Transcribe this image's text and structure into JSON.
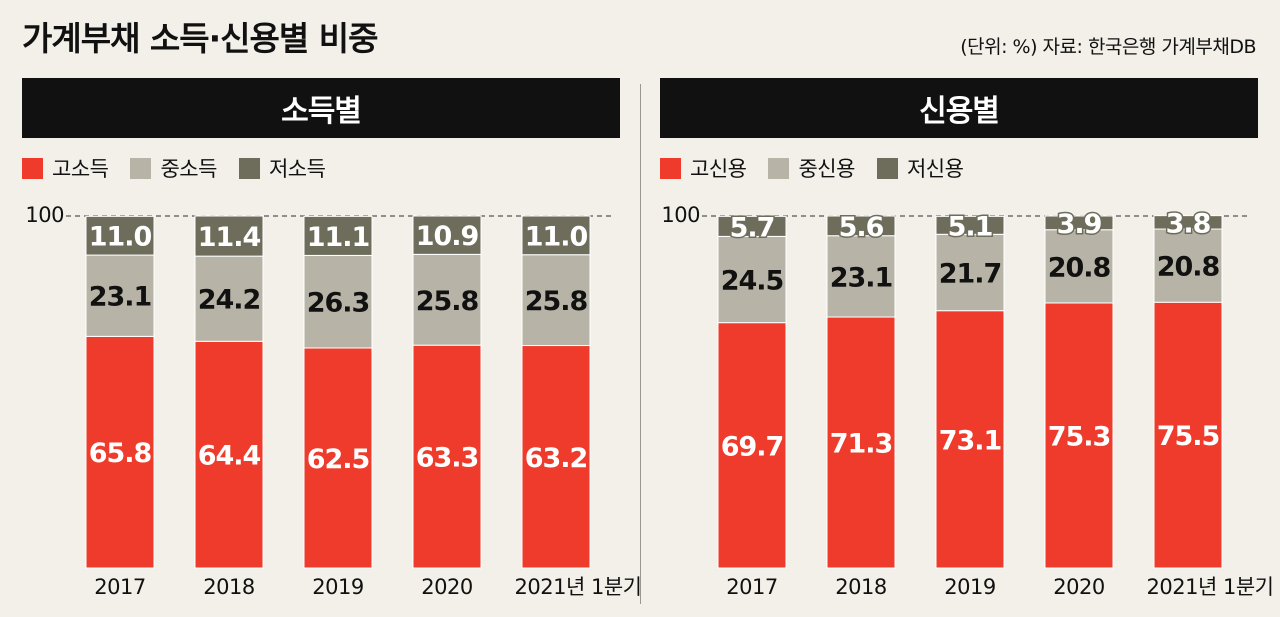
{
  "title": "가계부채 소득·신용별 비중",
  "source": "(단위: %) 자료: 한국은행 가계부채DB",
  "colors": {
    "high": "#ee3b2b",
    "mid": "#b7b4a7",
    "low": "#6e6d5c",
    "header_bg": "#111111"
  },
  "chart_data": [
    {
      "type": "bar",
      "stacked": true,
      "title": "소득별",
      "categories": [
        "2017",
        "2018",
        "2019",
        "2020",
        "2021년 1분기"
      ],
      "ylim": [
        0,
        100
      ],
      "yticks": [
        {
          "value": 100,
          "label": "100"
        }
      ],
      "series": [
        {
          "name": "고소득",
          "color": "#ee3b2b",
          "values": [
            65.8,
            64.4,
            62.5,
            63.3,
            63.2
          ],
          "labels": [
            "65.8",
            "64.4",
            "62.5",
            "63.3",
            "63.2"
          ]
        },
        {
          "name": "중소득",
          "color": "#b7b4a7",
          "values": [
            23.1,
            24.2,
            26.3,
            25.8,
            25.8
          ],
          "labels": [
            "23.1",
            "24.2",
            "26.3",
            "25.8",
            "25.8"
          ]
        },
        {
          "name": "저소득",
          "color": "#6e6d5c",
          "values": [
            11.0,
            11.4,
            11.1,
            10.9,
            11.0
          ],
          "labels": [
            "11.0",
            "11.4",
            "11.1",
            "10.9",
            "11.0"
          ]
        }
      ]
    },
    {
      "type": "bar",
      "stacked": true,
      "title": "신용별",
      "categories": [
        "2017",
        "2018",
        "2019",
        "2020",
        "2021년 1분기"
      ],
      "ylim": [
        0,
        100
      ],
      "yticks": [
        {
          "value": 100,
          "label": "100"
        }
      ],
      "series": [
        {
          "name": "고신용",
          "color": "#ee3b2b",
          "values": [
            69.7,
            71.3,
            73.1,
            75.3,
            75.5
          ],
          "labels": [
            "69.7",
            "71.3",
            "73.1",
            "75.3",
            "75.5"
          ]
        },
        {
          "name": "중신용",
          "color": "#b7b4a7",
          "values": [
            24.5,
            23.1,
            21.7,
            20.8,
            20.8
          ],
          "labels": [
            "24.5",
            "23.1",
            "21.7",
            "20.8",
            "20.8"
          ]
        },
        {
          "name": "저신용",
          "color": "#6e6d5c",
          "values": [
            5.7,
            5.6,
            5.1,
            3.9,
            3.8
          ],
          "labels": [
            "5.7",
            "5.6",
            "5.1",
            "3.9",
            "3.8"
          ]
        }
      ]
    }
  ]
}
